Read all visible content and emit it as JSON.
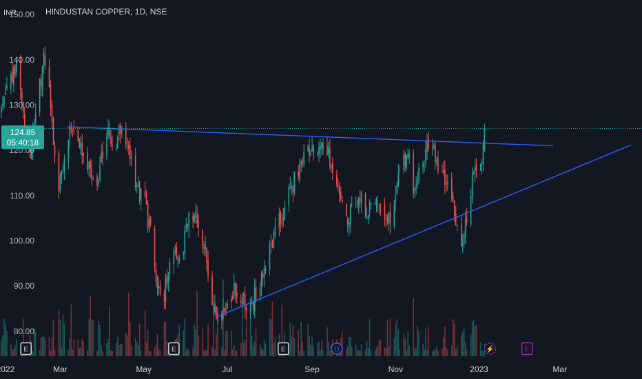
{
  "chart_data": {
    "type": "candlestick",
    "title": "HINDUSTAN COPPER, 1D, NSE",
    "unit": "INR",
    "last_price": "124.85",
    "countdown": "05:40:18",
    "ylim": [
      74.5,
      152
    ],
    "y_ticks": [
      {
        "value": 150,
        "label": "150.00"
      },
      {
        "value": 140,
        "label": "140.00"
      },
      {
        "value": 130,
        "label": "130.00"
      },
      {
        "value": 120,
        "label": "120.00"
      },
      {
        "value": 110,
        "label": "110.00"
      },
      {
        "value": 100,
        "label": "100.00"
      },
      {
        "value": 90,
        "label": "90.00"
      },
      {
        "value": 80,
        "label": "80.00"
      }
    ],
    "x_ticks": [
      {
        "date": "2022-01-20",
        "label": "2022"
      },
      {
        "date": "2022-03-01",
        "label": "Mar"
      },
      {
        "date": "2022-05-01",
        "label": "May"
      },
      {
        "date": "2022-07-01",
        "label": "Jul"
      },
      {
        "date": "2022-09-01",
        "label": "Sep"
      },
      {
        "date": "2022-11-01",
        "label": "Nov"
      },
      {
        "date": "2023-01-01",
        "label": "2023"
      },
      {
        "date": "2023-03-01",
        "label": "Mar"
      }
    ],
    "x_range": [
      "2022-01-16",
      "2023-04-30"
    ],
    "price_path": [
      [
        "2022-01-17",
        128
      ],
      [
        "2022-01-21",
        133
      ],
      [
        "2022-01-28",
        138
      ],
      [
        "2022-02-02",
        128
      ],
      [
        "2022-02-07",
        120
      ],
      [
        "2022-02-12",
        130
      ],
      [
        "2022-02-17",
        140
      ],
      [
        "2022-02-21",
        133
      ],
      [
        "2022-02-24",
        122
      ],
      [
        "2022-02-28",
        112
      ],
      [
        "2022-03-04",
        118
      ],
      [
        "2022-03-10",
        126
      ],
      [
        "2022-03-16",
        120
      ],
      [
        "2022-03-22",
        117
      ],
      [
        "2022-03-28",
        113
      ],
      [
        "2022-04-04",
        124
      ],
      [
        "2022-04-10",
        121
      ],
      [
        "2022-04-14",
        125
      ],
      [
        "2022-04-18",
        122
      ],
      [
        "2022-04-26",
        112
      ],
      [
        "2022-05-02",
        108
      ],
      [
        "2022-05-06",
        102
      ],
      [
        "2022-05-10",
        92
      ],
      [
        "2022-05-16",
        88
      ],
      [
        "2022-05-22",
        100
      ],
      [
        "2022-05-28",
        95
      ],
      [
        "2022-06-02",
        104
      ],
      [
        "2022-06-08",
        106
      ],
      [
        "2022-06-12",
        102
      ],
      [
        "2022-06-16",
        95
      ],
      [
        "2022-06-20",
        86
      ],
      [
        "2022-06-24",
        83
      ],
      [
        "2022-06-30",
        86
      ],
      [
        "2022-07-06",
        89
      ],
      [
        "2022-07-12",
        87
      ],
      [
        "2022-07-17",
        84
      ],
      [
        "2022-07-22",
        89
      ],
      [
        "2022-07-30",
        95
      ],
      [
        "2022-08-05",
        103
      ],
      [
        "2022-08-11",
        106
      ],
      [
        "2022-08-17",
        112
      ],
      [
        "2022-08-24",
        117
      ],
      [
        "2022-08-31",
        121
      ],
      [
        "2022-09-05",
        118
      ],
      [
        "2022-09-10",
        123
      ],
      [
        "2022-09-15",
        116
      ],
      [
        "2022-09-20",
        111
      ],
      [
        "2022-09-26",
        104
      ],
      [
        "2022-10-01",
        108
      ],
      [
        "2022-10-06",
        110
      ],
      [
        "2022-10-12",
        106
      ],
      [
        "2022-10-18",
        109
      ],
      [
        "2022-10-24",
        104
      ],
      [
        "2022-10-29",
        106
      ],
      [
        "2022-11-04",
        116
      ],
      [
        "2022-11-10",
        119
      ],
      [
        "2022-11-14",
        112
      ],
      [
        "2022-11-18",
        115
      ],
      [
        "2022-11-24",
        121
      ],
      [
        "2022-11-30",
        118
      ],
      [
        "2022-12-06",
        113
      ],
      [
        "2022-12-11",
        110
      ],
      [
        "2022-12-16",
        103
      ],
      [
        "2022-12-19",
        100
      ],
      [
        "2022-12-23",
        104
      ],
      [
        "2022-12-27",
        114
      ],
      [
        "2022-12-31",
        116
      ],
      [
        "2023-01-03",
        119
      ],
      [
        "2023-01-05",
        124.85
      ]
    ],
    "trendlines": [
      {
        "color": "#2962ff",
        "from": [
          "2022-03-06",
          125.2
        ],
        "to": [
          "2023-02-24",
          121.0
        ]
      },
      {
        "color": "#2962ff",
        "from": [
          "2022-06-24",
          83.3
        ],
        "to": [
          "2023-04-22",
          121.2
        ]
      }
    ],
    "event_markers": [
      {
        "date": "2022-02-04",
        "label": "E",
        "type": "earnings"
      },
      {
        "date": "2022-05-23",
        "label": "E",
        "type": "earnings"
      },
      {
        "date": "2022-08-11",
        "label": "E",
        "type": "earnings"
      },
      {
        "date": "2022-09-19",
        "label": "D",
        "type": "dividend"
      },
      {
        "date": "2023-01-09",
        "label": "⚡",
        "type": "split"
      },
      {
        "date": "2023-02-05",
        "label": "E",
        "type": "earnings-upcoming"
      }
    ],
    "colors": {
      "background": "#131722",
      "up": "#26a69a",
      "down": "#ef5350",
      "trendline": "#2962ff",
      "price_label": "#26a69a",
      "dividend": "#2962ff",
      "split": "#9c27b0",
      "earnings": "#d1d4dc",
      "earnings_upcoming": "#9c27b0"
    }
  }
}
